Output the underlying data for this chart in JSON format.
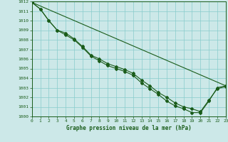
{
  "title": "Graphe pression niveau de la mer (hPa)",
  "bg_color": "#cce8e8",
  "grid_color": "#88cccc",
  "line_color": "#1a5c1a",
  "text_color": "#1a5c1a",
  "x_min": 0,
  "x_max": 23,
  "y_min": 1000,
  "y_max": 1012,
  "x_ticks": [
    0,
    1,
    2,
    3,
    4,
    5,
    6,
    7,
    8,
    9,
    10,
    11,
    12,
    13,
    14,
    15,
    16,
    17,
    18,
    19,
    20,
    21,
    22,
    23
  ],
  "y_ticks": [
    1000,
    1001,
    1002,
    1003,
    1004,
    1005,
    1006,
    1007,
    1008,
    1009,
    1010,
    1011,
    1012
  ],
  "series1_x": [
    0,
    1,
    2,
    3,
    4,
    5,
    6,
    7,
    8,
    9,
    10,
    11,
    12,
    13,
    14,
    15,
    16,
    17,
    18,
    19,
    20,
    21,
    22,
    23
  ],
  "series1_y": [
    1011.9,
    1011.2,
    1010.0,
    1009.0,
    1008.7,
    1008.1,
    1007.3,
    1006.4,
    1006.0,
    1005.5,
    1005.2,
    1004.9,
    1004.5,
    1003.8,
    1003.2,
    1002.5,
    1002.0,
    1001.4,
    1001.0,
    1000.8,
    1000.5,
    1001.7,
    1002.9,
    1003.1
  ],
  "series2_x": [
    0,
    1,
    2,
    3,
    4,
    5,
    6,
    7,
    8,
    9,
    10,
    11,
    12,
    13,
    14,
    15,
    16,
    17,
    18,
    19,
    20,
    21,
    22,
    23
  ],
  "series2_y": [
    1011.9,
    1011.2,
    1010.0,
    1009.0,
    1008.5,
    1008.0,
    1007.2,
    1006.3,
    1005.8,
    1005.3,
    1005.0,
    1004.7,
    1004.3,
    1003.5,
    1002.9,
    1002.3,
    1001.6,
    1001.1,
    1000.8,
    1000.4,
    1000.4,
    1001.6,
    1003.0,
    1003.2
  ],
  "series3_x": [
    0,
    23
  ],
  "series3_y": [
    1011.9,
    1003.2
  ]
}
